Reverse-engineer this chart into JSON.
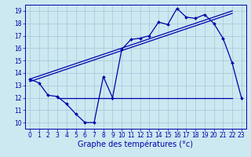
{
  "xlabel": "Graphe des températures (°c)",
  "bg_color": "#cce8f0",
  "grid_color": "#aaccdd",
  "line_color": "#0000aa",
  "xlim": [
    -0.5,
    23.5
  ],
  "ylim": [
    9.5,
    19.5
  ],
  "xticks": [
    0,
    1,
    2,
    3,
    4,
    5,
    6,
    7,
    8,
    9,
    10,
    11,
    12,
    13,
    14,
    15,
    16,
    17,
    18,
    19,
    20,
    21,
    22,
    23
  ],
  "yticks": [
    10,
    11,
    12,
    13,
    14,
    15,
    16,
    17,
    18,
    19
  ],
  "line1_x": [
    0,
    1,
    2,
    3,
    4,
    5,
    6,
    7,
    8,
    9,
    10,
    11,
    12,
    13,
    14,
    15,
    16,
    17,
    18,
    19,
    20,
    21,
    22,
    23
  ],
  "line1_y": [
    13.5,
    13.2,
    12.2,
    12.1,
    11.5,
    10.7,
    10.0,
    10.0,
    13.7,
    12.0,
    15.9,
    16.7,
    16.8,
    17.0,
    18.1,
    17.9,
    19.2,
    18.5,
    18.4,
    18.7,
    18.0,
    16.8,
    14.8,
    12.0
  ],
  "line2_x": [
    0,
    22
  ],
  "line2_y": [
    13.5,
    19.0
  ],
  "line3_x": [
    0,
    22
  ],
  "line3_y": [
    13.3,
    18.8
  ],
  "line4_x": [
    3,
    22
  ],
  "line4_y": [
    12.0,
    12.0
  ],
  "tick_fontsize": 5.5,
  "xlabel_fontsize": 7
}
